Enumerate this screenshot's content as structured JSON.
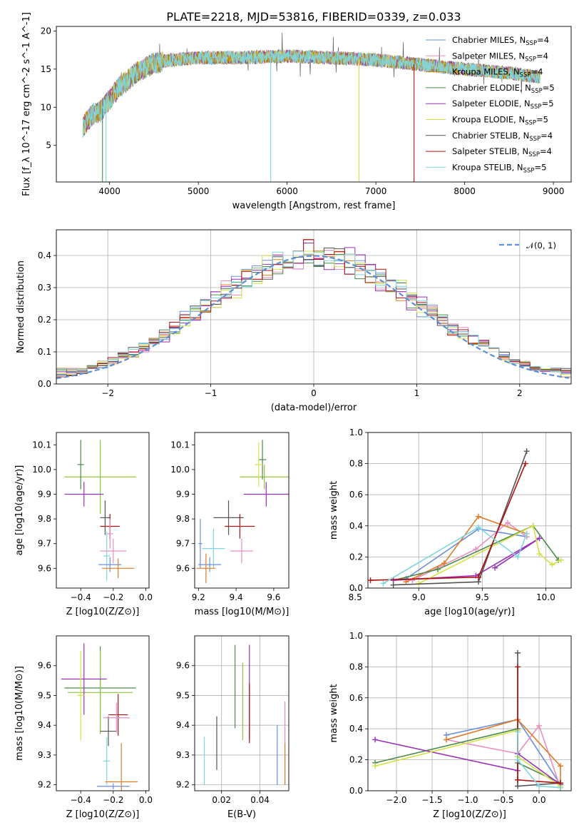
{
  "page": {
    "title": "PLATE=2218, MJD=53816, FIBERID=0339, z=0.033"
  },
  "legend_entries": [
    {
      "label": "Chabrier MILES, N",
      "sub": "SSP",
      "suffix": "=4",
      "color": "#6a8fd8"
    },
    {
      "label": "Salpeter MILES, N",
      "sub": "SSP",
      "suffix": "=4",
      "color": "#e88fc0"
    },
    {
      "label": "Kroupa MILES, N",
      "sub": "SSP",
      "suffix": "=4",
      "color": "#b8860b"
    },
    {
      "label": "Chabrier ELODIE, N",
      "sub": "SSP",
      "suffix": "=5",
      "color": "#4a8a4a"
    },
    {
      "label": "Salpeter ELODIE, N",
      "sub": "SSP",
      "suffix": "=5",
      "color": "#9b30b8"
    },
    {
      "label": "Kroupa ELODIE, N",
      "sub": "SSP",
      "suffix": "=5",
      "color": "#d4e04a"
    },
    {
      "label": "Chabrier STELIB, N",
      "sub": "SSP",
      "suffix": "=4",
      "color": "#555555"
    },
    {
      "label": "Salpeter STELIB, N",
      "sub": "SSP",
      "suffix": "=4",
      "color": "#b01010"
    },
    {
      "label": "Kroupa STELIB, N",
      "sub": "SSP",
      "suffix": "=5",
      "color": "#7fd6de"
    }
  ],
  "colors": {
    "orange": "#e07b28",
    "green_light": "#8cc43c",
    "gauss": "#5b8fd6"
  },
  "chart_data": [
    {
      "id": "spectrum",
      "type": "line",
      "title": "PLATE=2218, MJD=53816, FIBERID=0339, z=0.033",
      "xlabel": "wavelength [Angstrom, rest frame]",
      "ylabel": "Flux [f_λ 10^-17 erg cm^-2 s^-1 A^-1]",
      "xlim": [
        3400,
        9200
      ],
      "ylim": [
        0.2,
        20.6
      ],
      "xticks": [
        "4000",
        "5000",
        "6000",
        "7000",
        "8000",
        "9000"
      ],
      "yticks": [
        "5",
        "10",
        "15",
        "20"
      ],
      "continuum": {
        "x": [
          3700,
          3800,
          3900,
          4000,
          4100,
          4300,
          4500,
          4700,
          5000,
          5500,
          6000,
          6500,
          7000,
          7500,
          8000,
          8500,
          8800
        ],
        "y": [
          7.5,
          9,
          9.5,
          11,
          12.5,
          14.5,
          15.8,
          16.2,
          16.5,
          16.5,
          16.7,
          16.5,
          16.2,
          15.6,
          15.0,
          14.5,
          14.0
        ]
      }
    },
    {
      "id": "residuals",
      "type": "line",
      "xlabel": "(data-model)/error",
      "ylabel": "Normed distribution",
      "xlim": [
        -2.5,
        2.5
      ],
      "ylim": [
        0,
        0.48
      ],
      "xticks": [
        "−2",
        "−1",
        "0",
        "1",
        "2"
      ],
      "yticks": [
        "0.0",
        "0.1",
        "0.2",
        "0.3",
        "0.4"
      ],
      "legend": "𝒩(0, 1)",
      "grid": true
    },
    {
      "id": "age_vs_Z",
      "type": "scatter",
      "xlabel": "Z [log10(Z/Z⊙)]",
      "ylabel": "age [log10(age/yr)]",
      "xlim": [
        -0.55,
        0.02
      ],
      "ylim": [
        9.52,
        10.15
      ],
      "xticks": [
        "−0.4",
        "−0.2",
        "0.0"
      ],
      "yticks": [
        "9.6",
        "9.7",
        "9.8",
        "9.9",
        "10.0",
        "10.1"
      ]
    },
    {
      "id": "age_vs_mass",
      "type": "scatter",
      "xlabel": "mass [log10(M/M⊙)]",
      "xlim": [
        9.18,
        9.68
      ],
      "ylim": [
        9.52,
        10.15
      ],
      "xticks": [
        "9.2",
        "9.4",
        "9.6"
      ],
      "yticks": [
        "9.6",
        "9.7",
        "9.8",
        "9.9",
        "10.0",
        "10.1"
      ]
    },
    {
      "id": "mw_vs_age",
      "type": "line",
      "xlabel": "age [log10(age/yr)]",
      "ylabel": "mass weight",
      "xlim": [
        8.6,
        10.2
      ],
      "ylim": [
        0,
        1.0
      ],
      "xticks": [
        "8.5",
        "9.0",
        "9.5",
        "10.0"
      ],
      "yticks": [
        "0.0",
        "0.2",
        "0.4",
        "0.6",
        "0.8",
        "1.0"
      ],
      "grid": true
    },
    {
      "id": "mass_vs_Z",
      "type": "scatter",
      "xlabel": "Z [log10(Z/Z⊙)]",
      "ylabel": "mass [log10(M/M⊙)]",
      "xlim": [
        -0.55,
        0.02
      ],
      "ylim": [
        9.18,
        9.7
      ],
      "xticks": [
        "−0.4",
        "−0.2",
        "0.0"
      ],
      "yticks": [
        "9.2",
        "9.3",
        "9.4",
        "9.5",
        "9.6"
      ]
    },
    {
      "id": "mass_vs_ebv",
      "type": "scatter",
      "xlabel": "E(B-V)",
      "xlim": [
        0.006,
        0.055
      ],
      "ylim": [
        9.18,
        9.7
      ],
      "xticks": [
        "0.02",
        "0.04"
      ],
      "yticks": [
        "9.2",
        "9.3",
        "9.4",
        "9.5",
        "9.6"
      ],
      "grid": true
    },
    {
      "id": "mw_vs_Z",
      "type": "line",
      "xlabel": "Z [log10(Z/Z⊙)]",
      "ylabel": "mass weight",
      "xlim": [
        -2.4,
        0.45
      ],
      "ylim": [
        0,
        1.0
      ],
      "xticks": [
        "−2.0",
        "−1.5",
        "−1.0",
        "−0.5",
        "0.0"
      ],
      "yticks": [
        "0.0",
        "0.2",
        "0.4",
        "0.6",
        "0.8",
        "1.0"
      ],
      "grid": true
    }
  ]
}
